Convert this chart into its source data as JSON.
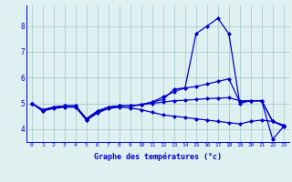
{
  "xlabel": "Graphe des températures (°c)",
  "x": [
    0,
    1,
    2,
    3,
    4,
    5,
    6,
    7,
    8,
    9,
    10,
    11,
    12,
    13,
    14,
    15,
    16,
    17,
    18,
    19,
    20,
    21,
    22,
    23
  ],
  "line1": [
    5.0,
    4.7,
    4.85,
    4.9,
    4.9,
    4.35,
    4.65,
    4.85,
    4.9,
    4.9,
    4.95,
    5.05,
    5.15,
    5.55,
    5.6,
    7.7,
    8.0,
    8.3,
    7.7,
    5.0,
    5.1,
    5.1,
    3.6,
    4.1
  ],
  "line2": [
    5.0,
    4.75,
    4.85,
    4.9,
    4.9,
    4.4,
    4.7,
    4.85,
    4.9,
    4.9,
    4.95,
    5.05,
    5.25,
    5.45,
    5.6,
    5.65,
    5.75,
    5.85,
    5.95,
    5.05,
    5.1,
    5.1,
    4.3,
    4.15
  ],
  "line3": [
    5.0,
    4.75,
    4.85,
    4.9,
    4.9,
    4.4,
    4.7,
    4.85,
    4.9,
    4.9,
    4.94,
    5.0,
    5.05,
    5.1,
    5.12,
    5.15,
    5.18,
    5.2,
    5.22,
    5.1,
    5.1,
    5.1,
    4.3,
    4.15
  ],
  "line4": [
    5.0,
    4.7,
    4.8,
    4.85,
    4.85,
    4.35,
    4.62,
    4.8,
    4.85,
    4.82,
    4.75,
    4.65,
    4.55,
    4.5,
    4.45,
    4.4,
    4.35,
    4.3,
    4.25,
    4.2,
    4.3,
    4.35,
    4.3,
    4.1
  ],
  "line_color": "#0000cc",
  "bg_color": "#dff0f0",
  "grid_color": "#aacccc",
  "ylim": [
    3.5,
    8.8
  ],
  "yticks": [
    4,
    5,
    6,
    7,
    8
  ],
  "marker_size": 2.0,
  "linewidth": 0.9
}
